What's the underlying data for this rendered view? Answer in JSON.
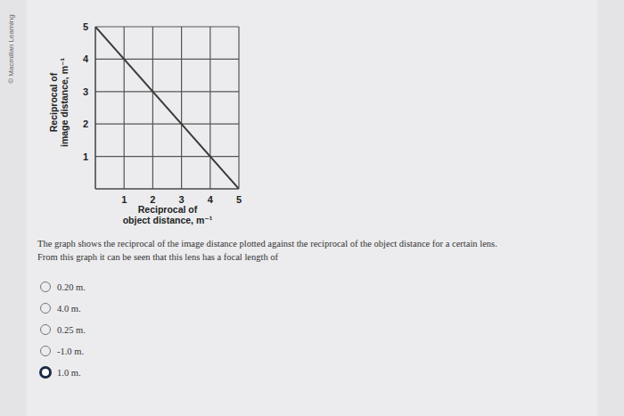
{
  "chart_data": {
    "type": "line",
    "x_label": [
      "Reciprocal of",
      "object distance, m⁻¹"
    ],
    "y_label": [
      "Reciprocal of",
      "image distance, m⁻¹"
    ],
    "x": [
      0,
      5
    ],
    "values": [
      5,
      0
    ],
    "color": "#3a3a3a",
    "xlim": [
      0,
      5
    ],
    "xticks": [
      1,
      2,
      3,
      4,
      5
    ],
    "ylim": [
      0,
      5
    ],
    "yticks": [
      1,
      2,
      3,
      4,
      5
    ],
    "grid": true
  },
  "watermark": "© Macmillan Learning",
  "question": [
    "The graph shows the reciprocal of the image distance plotted against the reciprocal of the object distance for a certain lens.",
    "From this graph it can be seen that this lens has a focal length of"
  ],
  "options": [
    "0.20 m.",
    "4.0 m.",
    "0.25 m.",
    "-1.0 m.",
    "1.0 m."
  ],
  "selected": "1.0 m."
}
